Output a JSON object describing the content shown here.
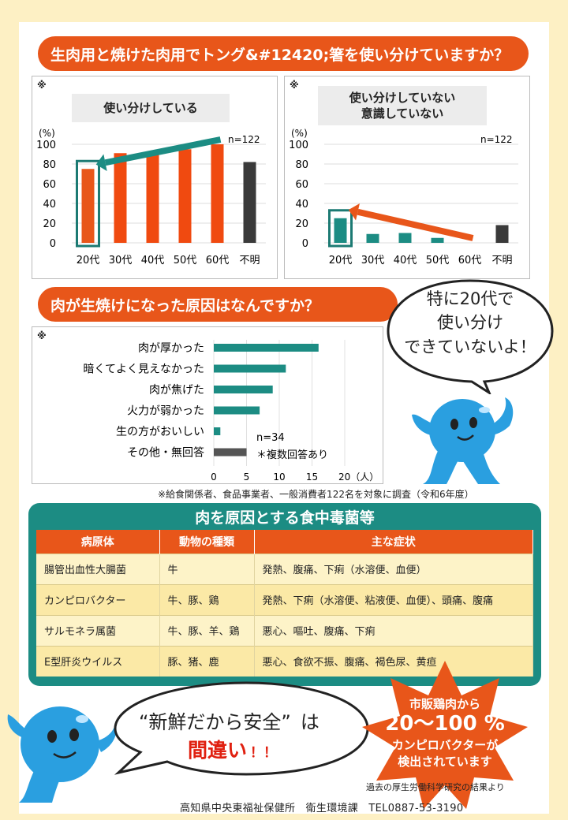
{
  "section1": {
    "banner": "生肉用と焼けた肉用でトング&#12420;箸を使い分けていますか？",
    "left_chart": {
      "note": "※",
      "caption": "使い分けしている",
      "unit": "(%)",
      "n": "n=122",
      "yticks": [
        "100",
        "80",
        "60",
        "40",
        "20",
        "0"
      ],
      "categories": [
        "20代",
        "30代",
        "40代",
        "50代",
        "60代",
        "不明"
      ]
    },
    "right_chart": {
      "note": "※",
      "caption_line1": "使い分けしていない",
      "caption_line2": "意識していない",
      "unit": "(%)",
      "n": "n=122",
      "yticks": [
        "100",
        "80",
        "60",
        "40",
        "20",
        "0"
      ],
      "categories": [
        "20代",
        "30代",
        "40代",
        "50代",
        "60代",
        "不明"
      ]
    }
  },
  "section2": {
    "banner": "肉が生焼けになった原因はなんですか？",
    "note": "※",
    "n": "n=34",
    "multi": "＊複数回答あり",
    "xticks": [
      "0",
      "5",
      "10",
      "15",
      "20（人）"
    ],
    "categories": [
      "肉が厚かった",
      "暗くてよく見えなかった",
      "肉が焦げた",
      "火力が弱かった",
      "生の方がおいしい",
      "その他・無回答"
    ],
    "survey_note": "※給食関係者、食品事業者、一般消費者122名を対象に調査（令和6年度）"
  },
  "bubble_top": {
    "line1": "特に20代で",
    "line2": "使い分け",
    "line3": "できていないよ！"
  },
  "table": {
    "title": "肉を原因とする食中毒菌等",
    "headers": [
      "病原体",
      "動物の種類",
      "主な症状"
    ],
    "rows": [
      {
        "pathogen": "腸管出血性大腸菌",
        "animal": "牛",
        "symptoms": "発熱、腹痛、下痢（水溶便、血便）"
      },
      {
        "pathogen": "カンピロバクター",
        "animal": "牛、豚、鶏",
        "symptoms": "発熱、下痢（水溶便、粘液便、血便）、頭痛、腹痛"
      },
      {
        "pathogen": "サルモネラ属菌",
        "animal": "牛、豚、羊、鶏",
        "symptoms": "悪心、嘔吐、腹痛、下痢"
      },
      {
        "pathogen": "E型肝炎ウイルス",
        "animal": "豚、猪、鹿",
        "symptoms": "悪心、食欲不振、腹痛、褐色尿、黄疸"
      }
    ]
  },
  "bubble_bottom": {
    "quote": "“新鮮だから安全”",
    "particle": "は",
    "wrong": "間違い",
    "excl": "！！"
  },
  "star": {
    "line1": "市販鶏肉から",
    "line2": "20～100 %",
    "line3": "カンピロバクターが",
    "line4": "検出されています",
    "source": "過去の厚生労働科学研究の結果より"
  },
  "footer": "高知県中央東福祉保健所　衛生環境課　TEL0887-53-3190",
  "colors": {
    "orange": "#e8561a",
    "teal": "#1c8c83",
    "dark": "#3a3a3a",
    "cream": "#fdf0c4"
  },
  "chart_data": [
    {
      "type": "bar",
      "caption": "使い分けしている",
      "categories": [
        "20代",
        "30代",
        "40代",
        "50代",
        "60代",
        "不明"
      ],
      "values": [
        75,
        91,
        90,
        95,
        100,
        82
      ],
      "ylim": [
        0,
        100
      ],
      "highlight": "20代"
    },
    {
      "type": "bar",
      "caption": "使い分けしていない 意識していない",
      "categories": [
        "20代",
        "30代",
        "40代",
        "50代",
        "60代",
        "不明"
      ],
      "values": [
        25,
        9,
        10,
        5,
        0,
        18
      ],
      "ylim": [
        0,
        100
      ],
      "highlight": "20代"
    },
    {
      "type": "bar",
      "orientation": "horizontal",
      "categories": [
        "肉が厚かった",
        "暗くてよく見えなかった",
        "肉が焦げた",
        "火力が弱かった",
        "生の方がおいしい",
        "その他・無回答"
      ],
      "values": [
        16,
        11,
        9,
        7,
        1,
        5
      ],
      "xlim": [
        0,
        20
      ]
    }
  ]
}
